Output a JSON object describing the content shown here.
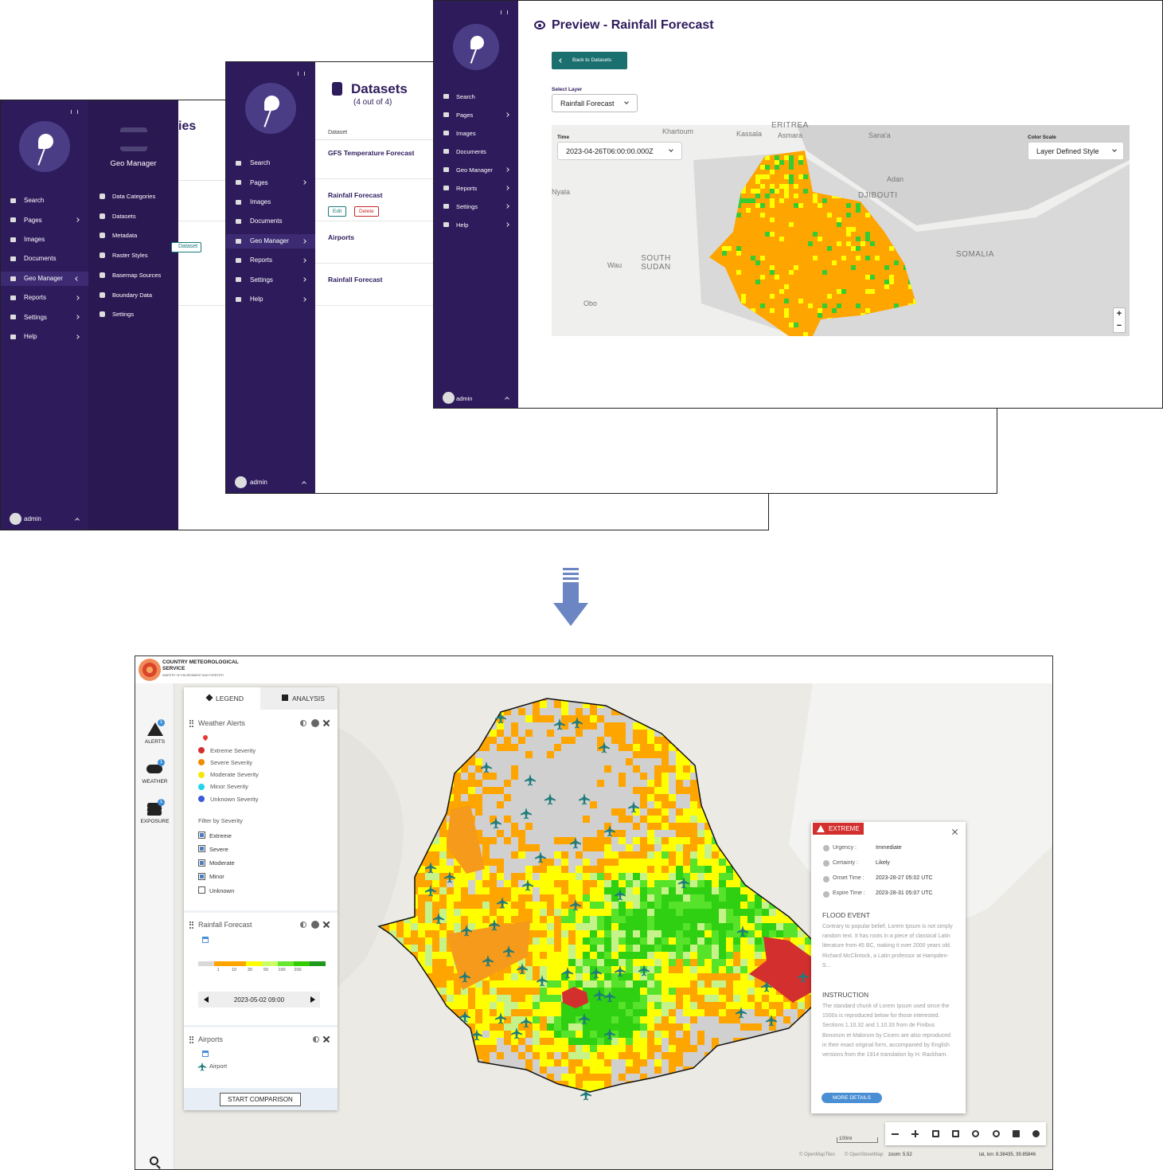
{
  "admin_screens": {
    "back": {
      "sidebar": {
        "menu": [
          "Search",
          "Pages",
          "Images",
          "Documents",
          "Geo Manager",
          "Reports",
          "Settings",
          "Help"
        ],
        "user": "admin"
      },
      "submenu": {
        "title": "Geo Manager",
        "items": [
          "Data Categories",
          "Datasets",
          "Metadata",
          "Raster Styles",
          "Basemap Sources",
          "Boundary Data",
          "Settings"
        ]
      },
      "page": {
        "title_fragment": "ies",
        "button_fragment": "Dataset"
      }
    },
    "middle": {
      "sidebar": {
        "menu": [
          "Search",
          "Pages",
          "Images",
          "Documents",
          "Geo Manager",
          "Reports",
          "Settings",
          "Help"
        ],
        "user": "admin"
      },
      "page": {
        "title": "Datasets",
        "count": "(4 out of 4)",
        "column": "Dataset",
        "rows": [
          {
            "name": "GFS Temperature Forecast"
          },
          {
            "name": "Rainfall Forecast",
            "actions": [
              "Edit",
              "Delete"
            ]
          },
          {
            "name": "Airports"
          },
          {
            "name": "Rainfall Forecast"
          }
        ]
      }
    },
    "front": {
      "sidebar": {
        "menu": [
          "Search",
          "Pages",
          "Images",
          "Documents",
          "Geo Manager",
          "Reports",
          "Settings",
          "Help"
        ],
        "user": "admin"
      },
      "page": {
        "title": "Preview - Rainfall Forecast",
        "back_button": "Back to Datasets",
        "layer_label": "Select Layer",
        "layer": "Rainfall Forecast",
        "time_label": "Time",
        "time": "2023-04-26T06:00:00.000Z",
        "color_scale_label": "Color Scale",
        "color_scale": "Layer Defined Style",
        "map_labels": [
          "Khartoum",
          "Kassala",
          "ERITREA",
          "Asmara",
          "Sana'a",
          "Adan",
          "DJIBOUTI",
          "Nyala",
          "SOUTH SUDAN",
          "Wau",
          "Obo",
          "SOMALIA"
        ],
        "zoom_controls": [
          "+",
          "−"
        ]
      }
    }
  },
  "app": {
    "header": {
      "title": "COUNTRY METEOROLOGICAL SERVICE",
      "subtitle": "MINISTRY OF ENVIRONMENT AND FORESTRY"
    },
    "rail": [
      {
        "label": "ALERTS",
        "badge": 1
      },
      {
        "label": "WEATHER",
        "badge": 1
      },
      {
        "label": "EXPOSURE",
        "badge": 1
      },
      {
        "label": "SEARCH"
      }
    ],
    "tabs": [
      "LEGEND",
      "ANALYSIS"
    ],
    "layers": {
      "weather_alerts": {
        "title": "Weather Alerts",
        "severities": [
          {
            "name": "Extreme Severity",
            "color": "#d32f2f"
          },
          {
            "name": "Severe Severity",
            "color": "#f08c00"
          },
          {
            "name": "Moderate Severity",
            "color": "#f5e60a"
          },
          {
            "name": "Minor Severity",
            "color": "#22d3ee"
          },
          {
            "name": "Unknown Severity",
            "color": "#3b5bdb"
          }
        ],
        "filter_label": "Filter by Severity",
        "filters": [
          {
            "label": "Extreme",
            "checked": true
          },
          {
            "label": "Severe",
            "checked": true
          },
          {
            "label": "Moderate",
            "checked": true
          },
          {
            "label": "Minor",
            "checked": true
          },
          {
            "label": "Unknown",
            "checked": false
          }
        ]
      },
      "rainfall": {
        "title": "Rainfall Forecast",
        "scale_colors": [
          "#d9d9d9",
          "#ffa500",
          "#ffa500",
          "#ffff00",
          "#ccff66",
          "#66e62e",
          "#33cc00",
          "#1f9a1f"
        ],
        "scale_labels": [
          1,
          10,
          30,
          50,
          100,
          200
        ],
        "time": "2023-05-02 09:00"
      },
      "airports": {
        "title": "Airports",
        "item": "Airport"
      }
    },
    "compare_button": "START COMPARISON",
    "popup": {
      "severity": "EXTREME",
      "fields": [
        {
          "label": "Urgency :",
          "value": "Immediate"
        },
        {
          "label": "Certainty :",
          "value": "Likely"
        },
        {
          "label": "Onset Time :",
          "value": "2023-28-27 05:02 UTC"
        },
        {
          "label": "Expire Time :",
          "value": "2023-28-31 05:07 UTC"
        }
      ],
      "sections": [
        {
          "title": "FLOOD EVENT",
          "text": "Contrary to popular belief, Lorem Ipsum is not simply random text. It has roots in a piece of classical Latin literature from 45 BC, making it over 2000 years old. Richard McClintock, a Latin professor at Hampden-S..."
        },
        {
          "title": "INSTRUCTION",
          "text": "The standard chunk of Lorem Ipsum used since the 1500s is reproduced below for those interested. Sections 1.10.32 and 1.10.33 from de Finibus Bonorum et Malorum by Cicero are also reproduced in their exact original form, accompanied by English versions from the 1914 translation by H. Rackham."
        }
      ],
      "button": "MORE DETAILS"
    },
    "footer": {
      "scale": "100mi",
      "attributions": [
        "© OpenMapTiles",
        "© OpenStreetMap"
      ],
      "zoom": "zoom: 5.52",
      "coords": "lat, lon: 8.38435, 39.85846"
    }
  }
}
